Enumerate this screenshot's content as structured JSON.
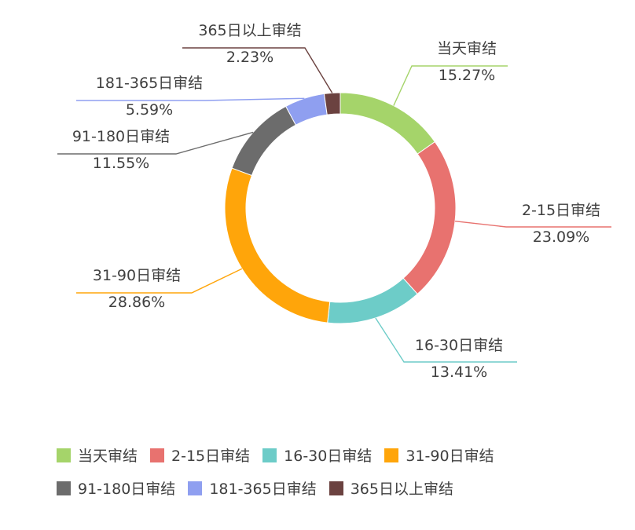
{
  "chart_data": {
    "type": "pie",
    "variant": "donut",
    "title": "",
    "slices": [
      {
        "name": "当天审结",
        "value": 15.27,
        "label": "15.27%",
        "color": "#a5d46a"
      },
      {
        "name": "2-15日审结",
        "value": 23.09,
        "label": "23.09%",
        "color": "#e8726f"
      },
      {
        "name": "16-30日审结",
        "value": 13.41,
        "label": "13.41%",
        "color": "#6dccc8"
      },
      {
        "name": "31-90日审结",
        "value": 28.86,
        "label": "28.86%",
        "color": "#ffa50a"
      },
      {
        "name": "91-180日审结",
        "value": 11.55,
        "label": "11.55%",
        "color": "#6c6c6c"
      },
      {
        "name": "181-365日审结",
        "value": 5.59,
        "label": "5.59%",
        "color": "#8f9ff0"
      },
      {
        "name": "365日以上审结",
        "value": 2.23,
        "label": "2.23%",
        "color": "#6b4240"
      }
    ],
    "legend_position": "bottom"
  }
}
